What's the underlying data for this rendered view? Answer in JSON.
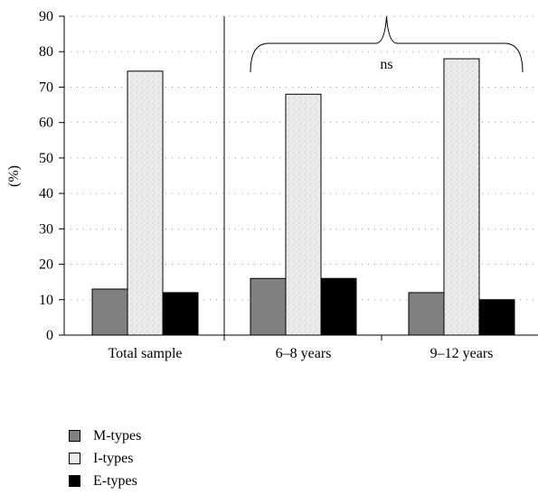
{
  "chart_data": {
    "type": "bar",
    "categories": [
      "Total sample",
      "6–8 years",
      "9–12 years"
    ],
    "series": [
      {
        "name": "M-types",
        "values": [
          13,
          16,
          12
        ],
        "color": "#808080"
      },
      {
        "name": "I-types",
        "values": [
          74.5,
          68,
          78
        ],
        "color": "#e8e8e8"
      },
      {
        "name": "E-types",
        "values": [
          12,
          16,
          10
        ],
        "color": "#000000"
      }
    ],
    "ylabel": "(%)",
    "ylim": [
      0,
      90
    ],
    "yticks": [
      0,
      10,
      20,
      30,
      40,
      50,
      60,
      70,
      80,
      90
    ],
    "grid": "dotted horizontal",
    "legend_position": "bottom-left",
    "annotations": [
      {
        "text": "ns",
        "spans": [
          "6–8 years",
          "9–12 years"
        ]
      }
    ]
  }
}
